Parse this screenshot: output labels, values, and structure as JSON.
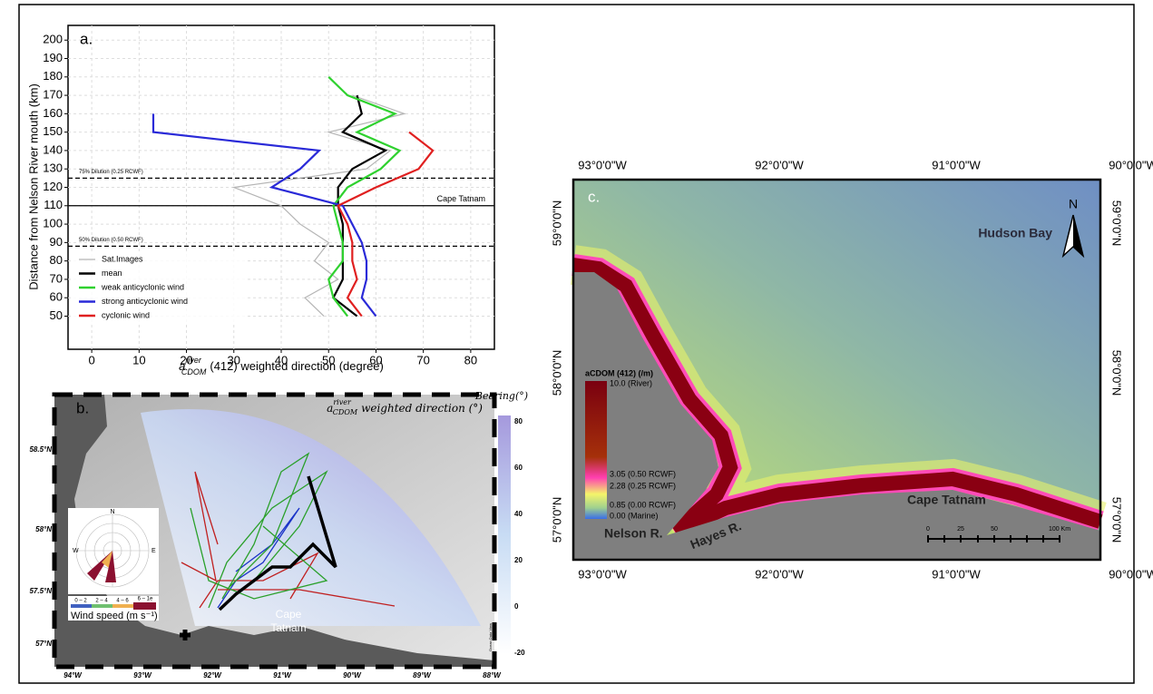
{
  "chart_data": {
    "type": "line",
    "orientation": "horizontal",
    "panel_label": "a.",
    "ylabel": "Distance from Nelson River mouth (km)",
    "xlabel": {
      "symbol": "a",
      "sup": "river",
      "sub": "CDOM",
      "rest": "(412) weighted direction (degree)"
    },
    "xlim": [
      -5,
      85
    ],
    "xticks": [
      0,
      10,
      20,
      30,
      40,
      50,
      60,
      70,
      80
    ],
    "ylim": [
      32,
      208
    ],
    "yticks": [
      50,
      60,
      70,
      80,
      90,
      100,
      110,
      120,
      130,
      140,
      150,
      160,
      170,
      180,
      190,
      200
    ],
    "grid": true,
    "y": [
      50,
      60,
      70,
      80,
      90,
      100,
      110,
      120,
      130,
      140,
      150,
      160,
      170,
      180
    ],
    "series": [
      {
        "name": "Sat.Images",
        "color": "#b5b5b5",
        "values": [
          49,
          45,
          52,
          47,
          50,
          44,
          40,
          30,
          58,
          63,
          50,
          66,
          55,
          null
        ]
      },
      {
        "name": "mean",
        "color": "#000000",
        "values": [
          56,
          51,
          53,
          53,
          53,
          53,
          52,
          52,
          55,
          62,
          53,
          57,
          56,
          null
        ]
      },
      {
        "name": "weak anticyclonic wind",
        "color": "#2fd12f",
        "values": [
          54,
          51,
          50,
          53,
          53,
          52,
          51,
          54,
          61,
          65,
          56,
          64,
          54,
          50
        ]
      },
      {
        "name": "strong anticyclonic wind",
        "color": "#2a2ad8",
        "values": [
          60,
          57,
          58,
          58,
          57,
          55,
          53,
          38,
          44,
          48,
          13,
          13,
          null,
          null
        ]
      },
      {
        "name": "cyclonic wind",
        "color": "#e02020",
        "values": [
          57,
          54,
          56,
          55,
          55,
          54,
          52,
          60,
          69,
          72,
          67,
          null,
          null,
          null
        ]
      }
    ],
    "reference_lines": [
      {
        "y": 125,
        "style": "dashed",
        "label": "75% Dilution (0.25 RCWF)"
      },
      {
        "y": 110,
        "style": "solid",
        "label": "Cape Tatnam"
      },
      {
        "y": 88,
        "style": "dashed",
        "label": "50% Dilution (0.50 RCWF)"
      }
    ]
  },
  "panel_b": {
    "label": "b.",
    "title": {
      "symbol": "a",
      "sup": "river",
      "sub": "CDOM",
      "rest": "weighted direction (°)"
    },
    "colorbar_title": "Bearing(°)",
    "colorbar_ticks": [
      "80",
      "60",
      "40",
      "20",
      "0",
      "-20"
    ],
    "lat_labels": [
      "58.5°N",
      "58°N",
      "57.5°N",
      "57°N"
    ],
    "lon_labels": [
      "94°W",
      "93°W",
      "92°W",
      "91°W",
      "90°W",
      "89°W",
      "88°W"
    ],
    "place": [
      "Cape",
      "Tatnam"
    ],
    "rose": {
      "n": "N",
      "w": "W",
      "e": "E"
    },
    "wind_classes": [
      "0 – 2",
      "2 – 4",
      "4 – 6",
      "6 – 1e"
    ],
    "wind_title": "Wind speed (m s⁻¹)",
    "credit": "Ocean Data View"
  },
  "panel_c": {
    "label": "c.",
    "north": "N",
    "lon_labels": [
      "93°0'0\"W",
      "92°0'0\"W",
      "91°0'0\"W",
      "90°0'0\"W"
    ],
    "lat_labels": [
      "59°0'0\"N",
      "58°0'0\"N",
      "57°0'0\"N"
    ],
    "places": {
      "bay": "Hudson Bay",
      "cape": "Cape Tatnam",
      "nelson": "Nelson R.",
      "hayes": "Hayes R."
    },
    "legend": {
      "title": "aCDOM (412) (/m)",
      "entries": [
        "10.0 (River)",
        "3.05 (0.50 RCWF)",
        "2.28 (0.25 RCWF)",
        "0.85 (0.00 RCWF)",
        "0.00 (Marine)"
      ]
    },
    "scale": [
      "0",
      "25",
      "50",
      "100 Km"
    ]
  }
}
